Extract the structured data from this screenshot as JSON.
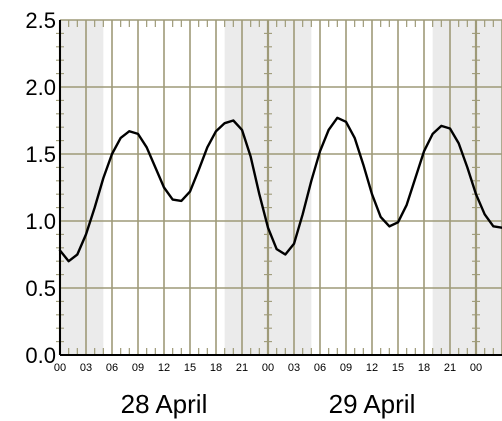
{
  "chart_data": {
    "type": "line",
    "title": "",
    "xlabel": "",
    "ylabel": "",
    "ylim": [
      0.0,
      2.5
    ],
    "y_ticks": [
      "0.0",
      "0.5",
      "1.0",
      "1.5",
      "2.0",
      "2.5"
    ],
    "x_range_hours": [
      0,
      51
    ],
    "x_tick_labels": [
      "00",
      "03",
      "06",
      "09",
      "12",
      "15",
      "18",
      "21",
      "00",
      "03",
      "06",
      "09",
      "12",
      "15",
      "18",
      "21",
      "00"
    ],
    "day_labels": [
      "28 April",
      "29 April"
    ],
    "grid": true,
    "colors": {
      "line": "#000000",
      "grid": "#9e9a78",
      "shade": "#ebebeb",
      "background": "#ffffff",
      "axis": "#000000"
    },
    "series": [
      {
        "x": [
          0,
          1,
          2,
          3,
          4,
          5,
          6,
          7,
          8,
          9,
          10,
          11,
          12,
          13,
          14,
          15,
          16,
          17,
          18,
          19,
          20,
          21,
          22,
          23,
          24,
          25,
          26,
          27,
          28,
          29,
          30,
          31,
          32,
          33,
          34,
          35,
          36,
          37,
          38,
          39,
          40,
          41,
          42,
          43,
          44,
          45,
          46,
          47,
          48,
          49,
          50,
          51
        ],
        "y": [
          0.78,
          0.7,
          0.75,
          0.9,
          1.1,
          1.32,
          1.5,
          1.62,
          1.67,
          1.65,
          1.55,
          1.4,
          1.25,
          1.16,
          1.15,
          1.22,
          1.38,
          1.55,
          1.67,
          1.73,
          1.75,
          1.68,
          1.48,
          1.2,
          0.95,
          0.79,
          0.75,
          0.83,
          1.05,
          1.3,
          1.52,
          1.68,
          1.77,
          1.74,
          1.62,
          1.42,
          1.2,
          1.03,
          0.96,
          0.99,
          1.12,
          1.32,
          1.52,
          1.65,
          1.71,
          1.69,
          1.58,
          1.4,
          1.2,
          1.05,
          0.96,
          0.95
        ]
      }
    ]
  }
}
